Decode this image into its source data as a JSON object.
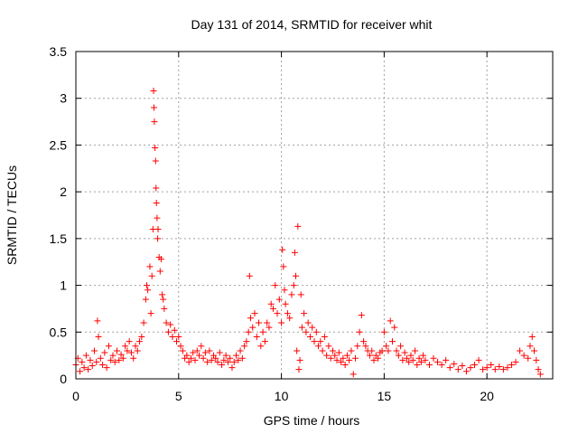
{
  "chart_data": {
    "type": "scatter",
    "title": "Day 131 of 2014, SRMTID for receiver whit",
    "xlabel": "GPS time / hours",
    "ylabel": "SRMTID / TECUs",
    "xlim": [
      0,
      23.2
    ],
    "ylim": [
      0,
      3.5
    ],
    "xticks": [
      0,
      5,
      10,
      15,
      20
    ],
    "xtick_labels": [
      "0",
      "5",
      "10",
      "15",
      "20"
    ],
    "yticks": [
      0,
      0.5,
      1,
      1.5,
      2,
      2.5,
      3,
      3.5
    ],
    "ytick_labels": [
      "0",
      "0.5",
      "1",
      "1.5",
      "2",
      "2.5",
      "3",
      "3.5"
    ],
    "grid": true,
    "marker": "+",
    "series": [
      {
        "name": "SRMTID",
        "color": "#ff0000",
        "x": [
          0.0,
          0.1,
          0.2,
          0.3,
          0.4,
          0.5,
          0.6,
          0.7,
          0.8,
          0.9,
          1.0,
          1.05,
          1.1,
          1.2,
          1.3,
          1.4,
          1.5,
          1.6,
          1.7,
          1.8,
          1.9,
          2.0,
          2.1,
          2.2,
          2.3,
          2.4,
          2.5,
          2.6,
          2.7,
          2.8,
          2.9,
          3.0,
          3.1,
          3.2,
          3.3,
          3.4,
          3.45,
          3.5,
          3.6,
          3.65,
          3.7,
          3.75,
          3.78,
          3.8,
          3.82,
          3.85,
          3.88,
          3.9,
          3.92,
          3.95,
          3.98,
          4.0,
          4.05,
          4.1,
          4.15,
          4.2,
          4.25,
          4.3,
          4.4,
          4.5,
          4.6,
          4.7,
          4.8,
          4.9,
          5.0,
          5.1,
          5.2,
          5.3,
          5.4,
          5.5,
          5.6,
          5.7,
          5.8,
          5.9,
          6.0,
          6.1,
          6.2,
          6.3,
          6.4,
          6.5,
          6.6,
          6.7,
          6.8,
          6.9,
          7.0,
          7.1,
          7.2,
          7.3,
          7.4,
          7.5,
          7.6,
          7.7,
          7.8,
          7.9,
          8.0,
          8.1,
          8.2,
          8.3,
          8.4,
          8.45,
          8.5,
          8.6,
          8.7,
          8.8,
          8.9,
          9.0,
          9.1,
          9.2,
          9.3,
          9.4,
          9.5,
          9.6,
          9.7,
          9.8,
          9.9,
          10.0,
          10.05,
          10.1,
          10.15,
          10.2,
          10.3,
          10.4,
          10.5,
          10.6,
          10.65,
          10.7,
          10.75,
          10.8,
          10.85,
          10.9,
          10.95,
          11.0,
          11.1,
          11.2,
          11.3,
          11.4,
          11.5,
          11.6,
          11.7,
          11.8,
          11.9,
          12.0,
          12.1,
          12.2,
          12.3,
          12.4,
          12.5,
          12.6,
          12.7,
          12.8,
          12.9,
          13.0,
          13.1,
          13.2,
          13.3,
          13.4,
          13.5,
          13.6,
          13.7,
          13.8,
          13.9,
          14.0,
          14.1,
          14.2,
          14.3,
          14.4,
          14.5,
          14.6,
          14.7,
          14.8,
          14.9,
          15.0,
          15.1,
          15.2,
          15.3,
          15.4,
          15.5,
          15.6,
          15.7,
          15.8,
          15.9,
          16.0,
          16.1,
          16.2,
          16.3,
          16.4,
          16.5,
          16.6,
          16.7,
          16.8,
          16.9,
          17.0,
          17.2,
          17.4,
          17.6,
          17.8,
          18.0,
          18.2,
          18.4,
          18.6,
          18.8,
          19.0,
          19.2,
          19.4,
          19.6,
          19.8,
          20.0,
          20.2,
          20.4,
          20.6,
          20.8,
          21.0,
          21.2,
          21.4,
          21.6,
          21.8,
          22.0,
          22.1,
          22.2,
          22.3,
          22.4,
          22.5,
          22.6
        ],
        "y": [
          0.15,
          0.22,
          0.08,
          0.18,
          0.12,
          0.25,
          0.1,
          0.2,
          0.14,
          0.3,
          0.18,
          0.62,
          0.45,
          0.22,
          0.15,
          0.28,
          0.12,
          0.35,
          0.2,
          0.25,
          0.18,
          0.3,
          0.2,
          0.26,
          0.22,
          0.35,
          0.3,
          0.4,
          0.28,
          0.22,
          0.35,
          0.3,
          0.4,
          0.45,
          0.6,
          0.85,
          1.0,
          0.95,
          1.2,
          0.7,
          1.1,
          1.6,
          3.08,
          2.9,
          2.75,
          2.47,
          2.33,
          2.04,
          1.88,
          1.72,
          1.5,
          1.6,
          1.3,
          1.15,
          1.28,
          0.9,
          0.85,
          0.75,
          0.6,
          0.5,
          0.58,
          0.45,
          0.52,
          0.4,
          0.45,
          0.35,
          0.3,
          0.22,
          0.25,
          0.18,
          0.22,
          0.28,
          0.2,
          0.3,
          0.25,
          0.35,
          0.22,
          0.28,
          0.18,
          0.3,
          0.2,
          0.25,
          0.22,
          0.18,
          0.28,
          0.15,
          0.2,
          0.25,
          0.18,
          0.22,
          0.12,
          0.18,
          0.25,
          0.2,
          0.3,
          0.22,
          0.35,
          0.4,
          0.5,
          1.1,
          0.65,
          0.55,
          0.7,
          0.45,
          0.6,
          0.35,
          0.5,
          0.4,
          0.6,
          0.55,
          0.8,
          0.75,
          1.0,
          0.7,
          0.85,
          0.6,
          1.38,
          1.2,
          0.95,
          0.8,
          0.7,
          0.65,
          0.9,
          1.0,
          1.35,
          1.1,
          0.3,
          1.63,
          0.1,
          0.2,
          0.9,
          0.55,
          0.7,
          0.5,
          0.6,
          0.45,
          0.55,
          0.4,
          0.5,
          0.35,
          0.4,
          0.3,
          0.45,
          0.25,
          0.35,
          0.22,
          0.3,
          0.25,
          0.2,
          0.28,
          0.18,
          0.22,
          0.15,
          0.25,
          0.2,
          0.3,
          0.05,
          0.22,
          0.35,
          0.5,
          0.68,
          0.4,
          0.35,
          0.3,
          0.25,
          0.3,
          0.2,
          0.25,
          0.22,
          0.28,
          0.3,
          0.5,
          0.35,
          0.3,
          0.62,
          0.4,
          0.55,
          0.3,
          0.25,
          0.35,
          0.2,
          0.28,
          0.22,
          0.18,
          0.25,
          0.2,
          0.3,
          0.15,
          0.22,
          0.18,
          0.25,
          0.2,
          0.15,
          0.22,
          0.18,
          0.15,
          0.2,
          0.12,
          0.16,
          0.1,
          0.14,
          0.08,
          0.12,
          0.15,
          0.2,
          0.1,
          0.12,
          0.15,
          0.1,
          0.13,
          0.1,
          0.12,
          0.15,
          0.18,
          0.3,
          0.25,
          0.22,
          0.35,
          0.45,
          0.3,
          0.2,
          0.1,
          0.05
        ]
      }
    ]
  }
}
